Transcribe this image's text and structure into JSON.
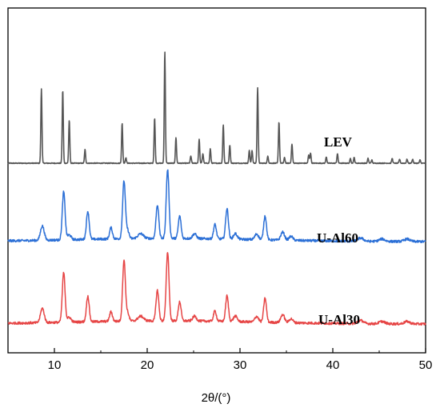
{
  "chart_data": {
    "type": "line",
    "title": "",
    "xlabel": "2θ/(°)",
    "ylabel": "",
    "xlim": [
      5,
      50
    ],
    "xticks": [
      10,
      20,
      30,
      40,
      50
    ],
    "grid": false,
    "series": [
      {
        "name": "LEV",
        "color": "#555555",
        "style": "stick",
        "peaks": [
          [
            8.6,
            93
          ],
          [
            10.9,
            92
          ],
          [
            11.6,
            54
          ],
          [
            13.3,
            17
          ],
          [
            17.3,
            50
          ],
          [
            17.7,
            7
          ],
          [
            20.8,
            57
          ],
          [
            21.9,
            140
          ],
          [
            23.1,
            32
          ],
          [
            24.7,
            9
          ],
          [
            25.6,
            30
          ],
          [
            26.0,
            12
          ],
          [
            26.8,
            18
          ],
          [
            28.2,
            48
          ],
          [
            28.9,
            23
          ],
          [
            31.0,
            16
          ],
          [
            31.3,
            16
          ],
          [
            31.9,
            95
          ],
          [
            33.0,
            9
          ],
          [
            34.2,
            52
          ],
          [
            34.8,
            7
          ],
          [
            35.6,
            24
          ],
          [
            37.4,
            10
          ],
          [
            37.6,
            13
          ],
          [
            39.3,
            8
          ],
          [
            40.5,
            12
          ],
          [
            41.9,
            6
          ],
          [
            42.3,
            7
          ],
          [
            43.8,
            6
          ],
          [
            44.2,
            4
          ],
          [
            46.4,
            6
          ],
          [
            47.2,
            5
          ],
          [
            48.0,
            5
          ],
          [
            48.6,
            5
          ],
          [
            49.4,
            4
          ]
        ],
        "baseline_noise": 1
      },
      {
        "name": "U-Al60",
        "color": "#2b6fd6",
        "style": "broad",
        "peaks": [
          [
            8.7,
            18,
            0.2
          ],
          [
            11.0,
            60,
            0.15
          ],
          [
            11.6,
            6,
            0.2
          ],
          [
            13.6,
            35,
            0.15
          ],
          [
            16.1,
            14,
            0.15
          ],
          [
            17.5,
            72,
            0.15
          ],
          [
            17.9,
            10,
            0.15
          ],
          [
            19.3,
            6,
            0.3
          ],
          [
            21.1,
            42,
            0.15
          ],
          [
            22.2,
            86,
            0.15
          ],
          [
            23.5,
            28,
            0.15
          ],
          [
            25.1,
            6,
            0.2
          ],
          [
            27.3,
            18,
            0.15
          ],
          [
            28.6,
            38,
            0.15
          ],
          [
            29.5,
            7,
            0.2
          ],
          [
            31.8,
            7,
            0.2
          ],
          [
            32.7,
            30,
            0.15
          ],
          [
            34.6,
            10,
            0.2
          ],
          [
            35.5,
            5,
            0.2
          ],
          [
            43.0,
            4,
            0.3
          ],
          [
            45.3,
            3,
            0.3
          ],
          [
            48.0,
            3,
            0.3
          ]
        ],
        "baseline_noise": 3
      },
      {
        "name": "U-Al30",
        "color": "#e64545",
        "style": "broad",
        "peaks": [
          [
            8.7,
            18,
            0.2
          ],
          [
            11.0,
            62,
            0.15
          ],
          [
            11.6,
            6,
            0.2
          ],
          [
            13.6,
            32,
            0.15
          ],
          [
            16.1,
            12,
            0.15
          ],
          [
            17.5,
            76,
            0.15
          ],
          [
            17.9,
            10,
            0.15
          ],
          [
            19.3,
            6,
            0.3
          ],
          [
            21.1,
            38,
            0.15
          ],
          [
            22.2,
            86,
            0.15
          ],
          [
            23.5,
            24,
            0.15
          ],
          [
            25.1,
            6,
            0.2
          ],
          [
            27.3,
            13,
            0.15
          ],
          [
            28.6,
            32,
            0.15
          ],
          [
            29.5,
            7,
            0.2
          ],
          [
            31.8,
            7,
            0.2
          ],
          [
            32.7,
            30,
            0.15
          ],
          [
            34.6,
            10,
            0.2
          ],
          [
            35.5,
            5,
            0.2
          ],
          [
            43.0,
            4,
            0.3
          ],
          [
            45.3,
            3,
            0.3
          ],
          [
            48.0,
            3,
            0.3
          ]
        ],
        "baseline_noise": 3
      }
    ]
  }
}
